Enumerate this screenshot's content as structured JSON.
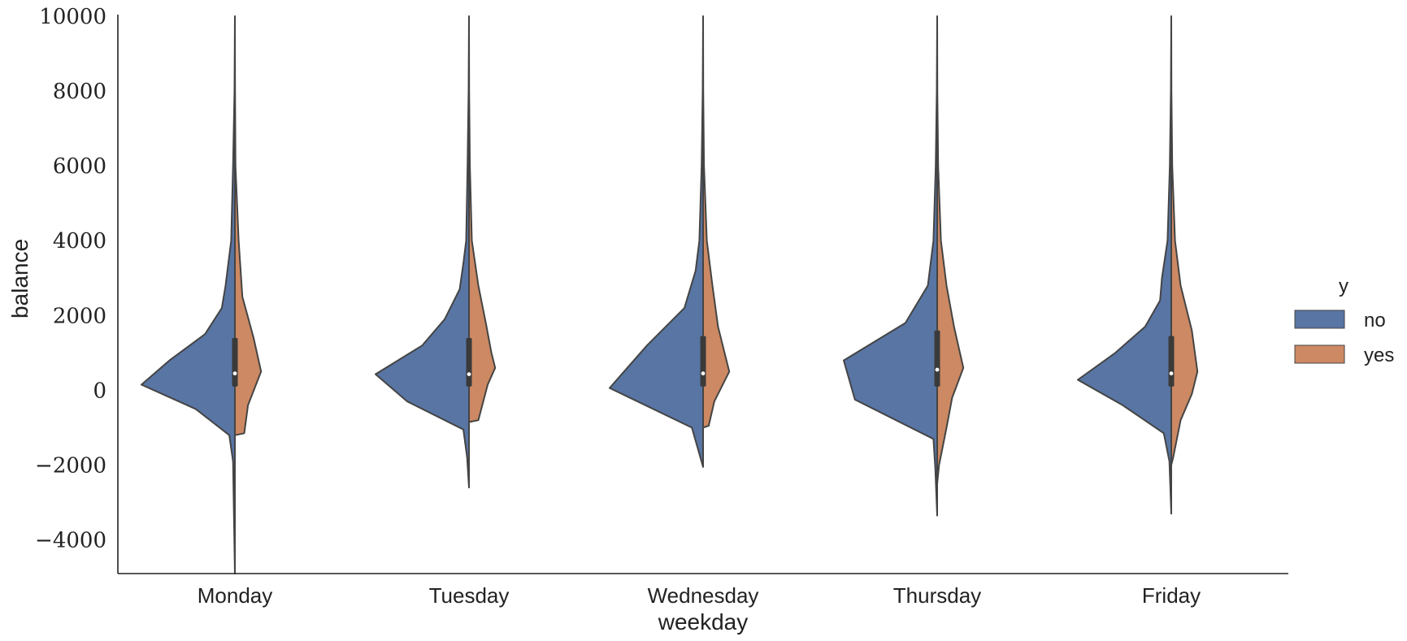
{
  "chart_data": {
    "type": "violin",
    "split": true,
    "xlabel": "weekday",
    "ylabel": "balance",
    "categories": [
      "Monday",
      "Tuesday",
      "Wednesday",
      "Thursday",
      "Friday"
    ],
    "ylim": [
      -4900,
      10000
    ],
    "yticks": [
      -4000,
      -2000,
      0,
      2000,
      4000,
      6000,
      8000,
      10000
    ],
    "ytick_labels": [
      "−4000",
      "−2000",
      "0",
      "2000",
      "4000",
      "6000",
      "8000",
      "10000"
    ],
    "grid": false,
    "legend": {
      "title": "y",
      "placement": "right",
      "entries": [
        {
          "label": "no",
          "color": "#5875a4"
        },
        {
          "label": "yes",
          "color": "#cc8963"
        }
      ]
    },
    "series": [
      {
        "name": "no",
        "color": "#5875a4",
        "side": "left",
        "max_half_width": 1.0,
        "violins": [
          {
            "profile": [
              [
                10000,
                0
              ],
              [
                8000,
                0.002
              ],
              [
                6000,
                0.01
              ],
              [
                4000,
                0.02
              ],
              [
                2800,
                0.05
              ],
              [
                2200,
                0.07
              ],
              [
                1500,
                0.16
              ],
              [
                800,
                0.35
              ],
              [
                150,
                0.5
              ],
              [
                -500,
                0.21
              ],
              [
                -1200,
                0.03
              ],
              [
                -1900,
                0.01
              ],
              [
                -4900,
                0
              ]
            ],
            "box": {
              "q1": 100,
              "median": 450,
              "q3": 1400
            }
          },
          {
            "profile": [
              [
                10000,
                0
              ],
              [
                8000,
                0.002
              ],
              [
                6000,
                0.008
              ],
              [
                4000,
                0.015
              ],
              [
                3400,
                0.03
              ],
              [
                2700,
                0.05
              ],
              [
                1900,
                0.13
              ],
              [
                1200,
                0.25
              ],
              [
                430,
                0.5
              ],
              [
                -300,
                0.33
              ],
              [
                -1050,
                0.03
              ],
              [
                -1800,
                0.01
              ],
              [
                -2600,
                0
              ]
            ],
            "box": {
              "q1": 100,
              "median": 430,
              "q3": 1400
            }
          },
          {
            "profile": [
              [
                10000,
                0
              ],
              [
                8000,
                0.002
              ],
              [
                6000,
                0.008
              ],
              [
                4000,
                0.02
              ],
              [
                3200,
                0.04
              ],
              [
                2200,
                0.1
              ],
              [
                1200,
                0.3
              ],
              [
                60,
                0.5
              ],
              [
                -1000,
                0.06
              ],
              [
                -2050,
                0
              ]
            ],
            "box": {
              "q1": 100,
              "median": 450,
              "q3": 1450
            }
          },
          {
            "profile": [
              [
                10000,
                0
              ],
              [
                8000,
                0.002
              ],
              [
                6000,
                0.008
              ],
              [
                4000,
                0.02
              ],
              [
                2800,
                0.05
              ],
              [
                1800,
                0.17
              ],
              [
                800,
                0.5
              ],
              [
                -250,
                0.44
              ],
              [
                -1300,
                0.02
              ],
              [
                -2100,
                0.01
              ],
              [
                -3350,
                0
              ]
            ],
            "box": {
              "q1": 100,
              "median": 550,
              "q3": 1600
            }
          },
          {
            "profile": [
              [
                10000,
                0
              ],
              [
                8000,
                0.002
              ],
              [
                6000,
                0.008
              ],
              [
                4000,
                0.02
              ],
              [
                3000,
                0.05
              ],
              [
                2400,
                0.06
              ],
              [
                1700,
                0.14
              ],
              [
                1000,
                0.3
              ],
              [
                280,
                0.5
              ],
              [
                -400,
                0.26
              ],
              [
                -1150,
                0.04
              ],
              [
                -1900,
                0.01
              ],
              [
                -3300,
                0
              ]
            ],
            "box": {
              "q1": 100,
              "median": 450,
              "q3": 1450
            }
          }
        ]
      },
      {
        "name": "yes",
        "color": "#cc8963",
        "side": "right",
        "max_half_width": 1.0,
        "violins": [
          {
            "profile": [
              [
                10000,
                0
              ],
              [
                8000,
                0.001
              ],
              [
                6000,
                0.003
              ],
              [
                4000,
                0.02
              ],
              [
                2500,
                0.04
              ],
              [
                1400,
                0.1
              ],
              [
                500,
                0.14
              ],
              [
                -400,
                0.07
              ],
              [
                -1150,
                0.05
              ],
              [
                -1200,
                0
              ]
            ]
          },
          {
            "profile": [
              [
                10000,
                0
              ],
              [
                8000,
                0.001
              ],
              [
                6000,
                0.005
              ],
              [
                4000,
                0.015
              ],
              [
                2800,
                0.05
              ],
              [
                1800,
                0.09
              ],
              [
                1000,
                0.12
              ],
              [
                600,
                0.14
              ],
              [
                150,
                0.1
              ],
              [
                -800,
                0.05
              ],
              [
                -850,
                0
              ]
            ]
          },
          {
            "profile": [
              [
                10000,
                0
              ],
              [
                8000,
                0.001
              ],
              [
                6000,
                0.005
              ],
              [
                4000,
                0.02
              ],
              [
                2800,
                0.05
              ],
              [
                1700,
                0.08
              ],
              [
                900,
                0.12
              ],
              [
                500,
                0.14
              ],
              [
                -300,
                0.06
              ],
              [
                -950,
                0.03
              ],
              [
                -1000,
                0
              ]
            ]
          },
          {
            "profile": [
              [
                10000,
                0
              ],
              [
                8000,
                0.001
              ],
              [
                6000,
                0.005
              ],
              [
                4000,
                0.02
              ],
              [
                2800,
                0.05
              ],
              [
                1700,
                0.09
              ],
              [
                600,
                0.14
              ],
              [
                -200,
                0.08
              ],
              [
                -1000,
                0.05
              ],
              [
                -2000,
                0.01
              ],
              [
                -2500,
                0
              ]
            ]
          },
          {
            "profile": [
              [
                10000,
                0
              ],
              [
                8000,
                0.001
              ],
              [
                6000,
                0.005
              ],
              [
                4000,
                0.02
              ],
              [
                2800,
                0.05
              ],
              [
                1600,
                0.11
              ],
              [
                500,
                0.14
              ],
              [
                -100,
                0.11
              ],
              [
                -800,
                0.05
              ],
              [
                -1800,
                0.01
              ],
              [
                -2000,
                0
              ]
            ]
          }
        ]
      }
    ]
  }
}
